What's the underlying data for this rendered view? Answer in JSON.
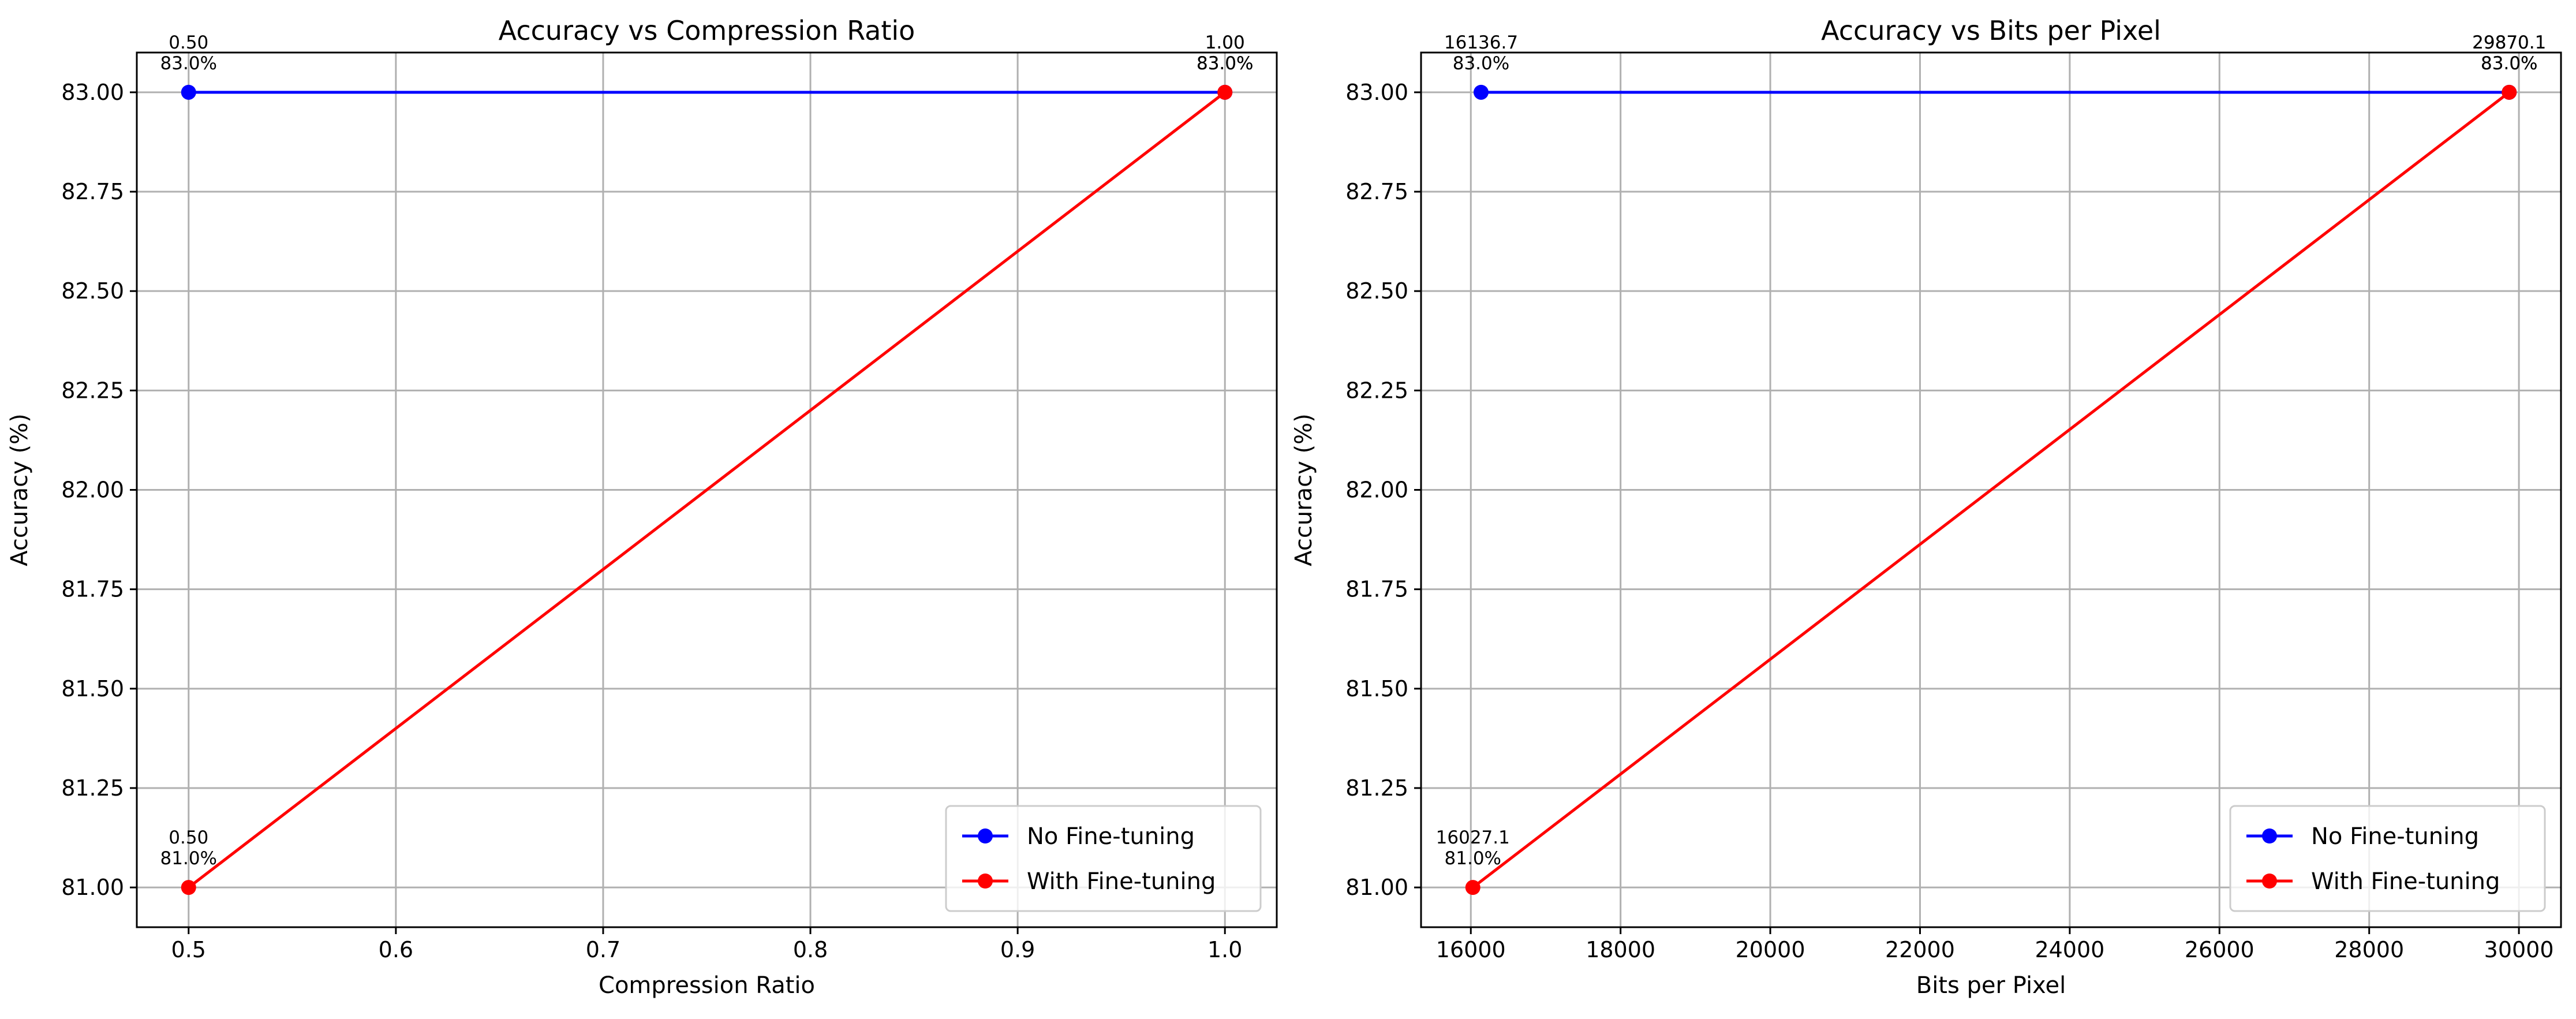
{
  "chart_data": [
    {
      "type": "line",
      "title": "Accuracy vs Compression Ratio",
      "xlabel": "Compression Ratio",
      "ylabel": "Accuracy (%)",
      "xlim": [
        0.475,
        1.025
      ],
      "ylim": [
        80.9,
        83.1
      ],
      "xticks": [
        "0.5",
        "0.6",
        "0.7",
        "0.8",
        "0.9",
        "1.0"
      ],
      "xtick_values": [
        0.5,
        0.6,
        0.7,
        0.8,
        0.9,
        1.0
      ],
      "yticks": [
        "81.00",
        "81.25",
        "81.50",
        "81.75",
        "82.00",
        "82.25",
        "82.50",
        "82.75",
        "83.00"
      ],
      "ytick_values": [
        81.0,
        81.25,
        81.5,
        81.75,
        82.0,
        82.25,
        82.5,
        82.75,
        83.0
      ],
      "grid": true,
      "legend_position": "bottom-right",
      "series": [
        {
          "name": "No Fine-tuning",
          "color": "#0000ff",
          "x": [
            0.5,
            1.0
          ],
          "y": [
            83.0,
            83.0
          ],
          "labels": [
            [
              "0.50",
              "83.0%"
            ],
            [
              "1.00",
              "83.0%"
            ]
          ]
        },
        {
          "name": "With Fine-tuning",
          "color": "#ff0000",
          "x": [
            0.5,
            1.0
          ],
          "y": [
            81.0,
            83.0
          ],
          "labels": [
            [
              "0.50",
              "81.0%"
            ],
            [
              "1.00",
              "83.0%"
            ]
          ]
        }
      ]
    },
    {
      "type": "line",
      "title": "Accuracy vs Bits per Pixel",
      "xlabel": "Bits per Pixel",
      "ylabel": "Accuracy (%)",
      "xlim": [
        15335,
        30562
      ],
      "ylim": [
        80.9,
        83.1
      ],
      "xticks": [
        "16000",
        "18000",
        "20000",
        "22000",
        "24000",
        "26000",
        "28000",
        "30000"
      ],
      "xtick_values": [
        16000,
        18000,
        20000,
        22000,
        24000,
        26000,
        28000,
        30000
      ],
      "yticks": [
        "81.00",
        "81.25",
        "81.50",
        "81.75",
        "82.00",
        "82.25",
        "82.50",
        "82.75",
        "83.00"
      ],
      "ytick_values": [
        81.0,
        81.25,
        81.5,
        81.75,
        82.0,
        82.25,
        82.5,
        82.75,
        83.0
      ],
      "grid": true,
      "legend_position": "bottom-right",
      "series": [
        {
          "name": "No Fine-tuning",
          "color": "#0000ff",
          "x": [
            16136.7,
            29870.1
          ],
          "y": [
            83.0,
            83.0
          ],
          "labels": [
            [
              "16136.7",
              "83.0%"
            ],
            [
              "29870.1",
              "83.0%"
            ]
          ]
        },
        {
          "name": "With Fine-tuning",
          "color": "#ff0000",
          "x": [
            16027.1,
            29870.1
          ],
          "y": [
            81.0,
            83.0
          ],
          "labels": [
            [
              "16027.1",
              "81.0%"
            ],
            [
              "29870.1",
              "83.0%"
            ]
          ]
        }
      ]
    }
  ]
}
